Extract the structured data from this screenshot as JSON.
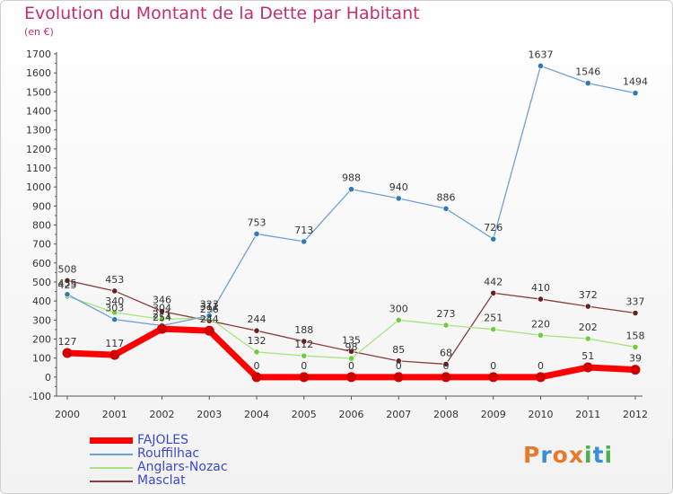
{
  "chart_data": {
    "type": "line",
    "title": "Evolution du Montant de la Dette par Habitant",
    "subtitle": "(en €)",
    "x": [
      "2000",
      "2001",
      "2002",
      "2003",
      "2004",
      "2005",
      "2006",
      "2007",
      "2008",
      "2009",
      "2010",
      "2011",
      "2012"
    ],
    "ylim": [
      -100,
      1700
    ],
    "yticks": [
      -100,
      0,
      100,
      200,
      300,
      400,
      500,
      600,
      700,
      800,
      900,
      1000,
      1100,
      1200,
      1300,
      1400,
      1500,
      1600,
      1700
    ],
    "grid": false,
    "legend_position": "bottom-left",
    "series": [
      {
        "name": "FAJOLES",
        "color": "#ff0000",
        "marker": "#d10000",
        "values": [
          127,
          117,
          254,
          244,
          0,
          0,
          0,
          0,
          0,
          0,
          0,
          51,
          39
        ],
        "labels": [
          "127",
          "117",
          "254",
          "244",
          "0",
          "0",
          "0",
          "0",
          "0",
          "0",
          "0",
          "51",
          "39"
        ]
      },
      {
        "name": "Rouffilhac",
        "color": "#6f9fd8",
        "marker": "#3477b6",
        "values": [
          435,
          303,
          271,
          323,
          753,
          713,
          988,
          940,
          886,
          726,
          1637,
          1546,
          1494
        ],
        "labels": [
          "435",
          "303",
          "271",
          "323",
          "753",
          "713",
          "988",
          "940",
          "886",
          "726",
          "1637",
          "1546",
          "1494"
        ]
      },
      {
        "name": "Anglars-Nozac",
        "color": "#a6e47e",
        "marker": "#6fcc3e",
        "values": [
          425,
          340,
          304,
          311,
          132,
          112,
          98,
          300,
          273,
          251,
          220,
          202,
          158
        ],
        "labels": [
          "425",
          "340",
          "304",
          "311",
          "132",
          "112",
          "98",
          "300",
          "273",
          "251",
          "220",
          "202",
          "158"
        ]
      },
      {
        "name": "Masclat",
        "color": "#8a3d3d",
        "marker": "#6b1f1f",
        "values": [
          508,
          453,
          346,
          296,
          244,
          188,
          135,
          85,
          68,
          442,
          410,
          372,
          337
        ],
        "labels": [
          "508",
          "453",
          "346",
          "296",
          "244",
          "188",
          "135",
          "85",
          "68",
          "442",
          "410",
          "372",
          "337"
        ]
      }
    ]
  },
  "logo": {
    "letters": [
      "P",
      "r",
      "o",
      "x",
      "i",
      "t",
      "i"
    ],
    "colors": [
      "#e8792b",
      "#3a8ed8",
      "#e8792b",
      "#e8792b",
      "#4caf50",
      "#3a8ed8",
      "#4caf50"
    ]
  }
}
